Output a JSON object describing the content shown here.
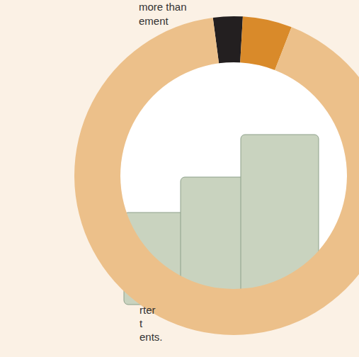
{
  "chart_data": {
    "type": "pie",
    "values": [
      3,
      5,
      92
    ],
    "colors": [
      "#231f20",
      "#d98a2a",
      "#ecc08a"
    ],
    "annotations": [
      "more than",
      "ement",
      "rter",
      "t",
      "ents."
    ]
  }
}
